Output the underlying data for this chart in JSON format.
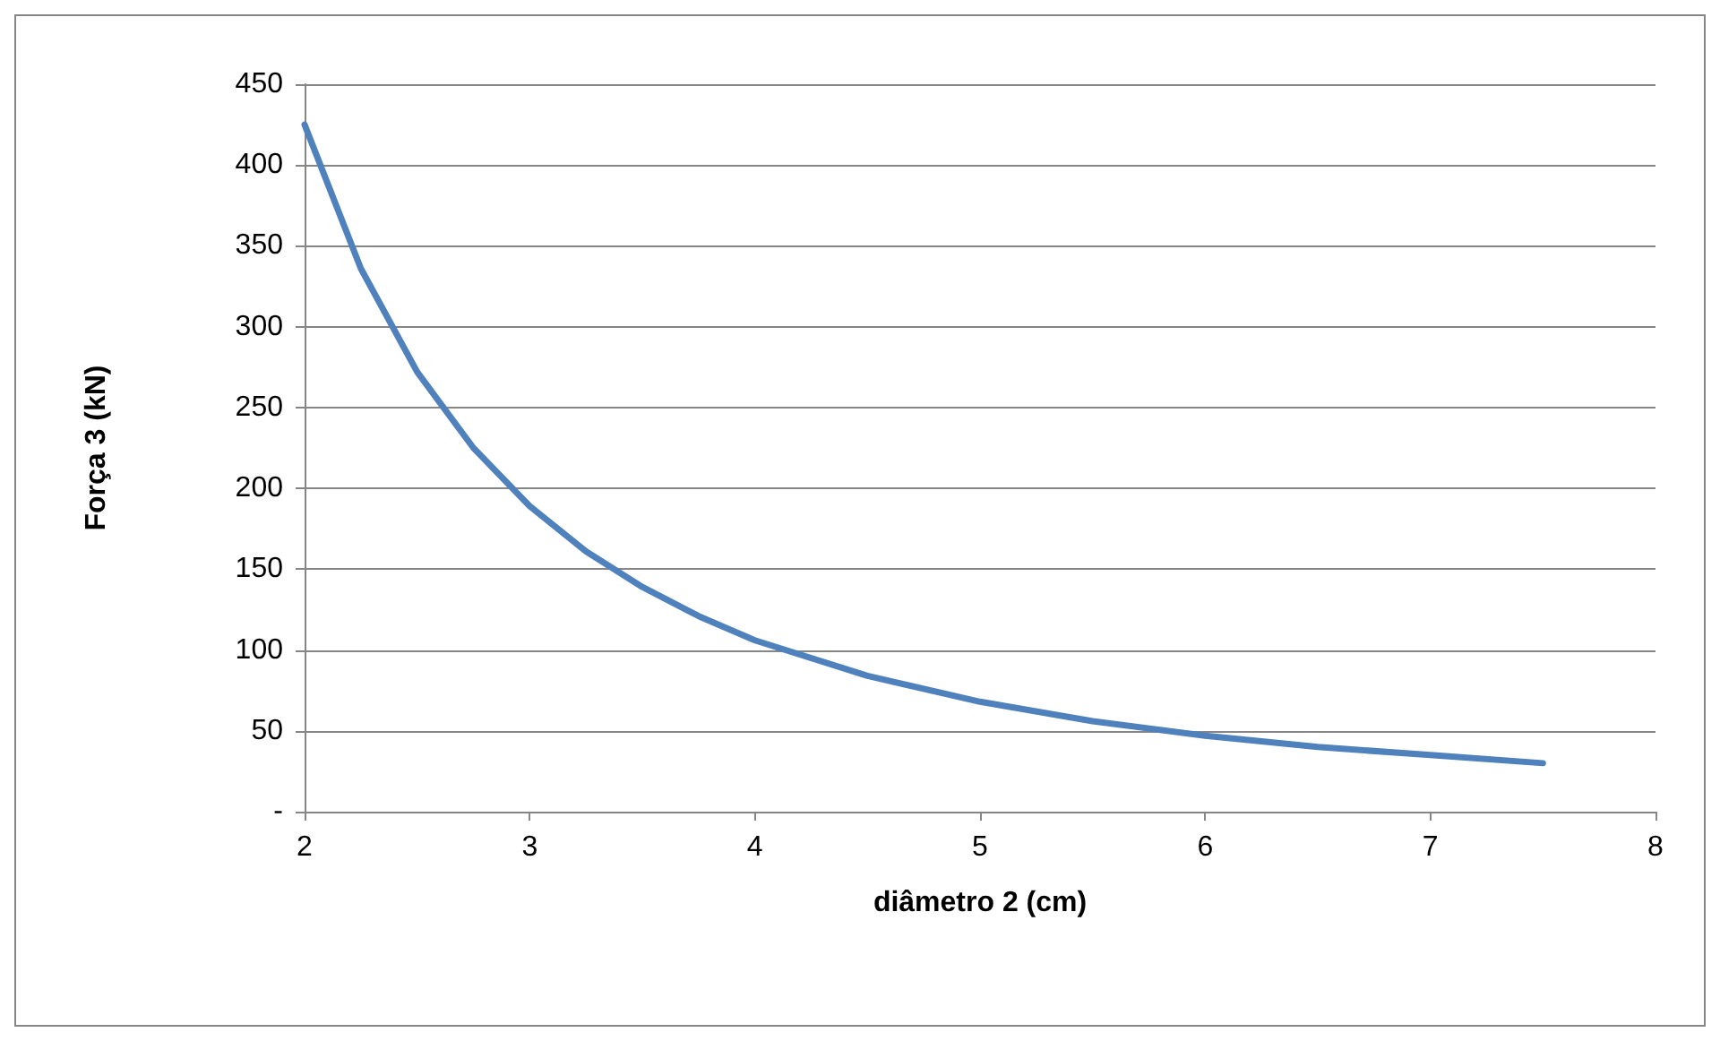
{
  "chart_data": {
    "type": "line",
    "xlabel": "diâmetro 2 (cm)",
    "ylabel": "Força 3 (kN)",
    "x": [
      2,
      2.25,
      2.5,
      2.75,
      3,
      3.25,
      3.5,
      3.75,
      4,
      4.5,
      5,
      5.5,
      6,
      6.5,
      7,
      7.5
    ],
    "series": [
      {
        "color": "#4f81bd",
        "values": [
          425,
          336,
          272,
          225,
          189,
          161,
          139,
          121,
          106,
          84,
          68,
          56,
          47,
          40,
          35,
          30
        ]
      }
    ],
    "xlim": [
      2,
      8
    ],
    "xticks": [
      2,
      3,
      4,
      5,
      6,
      7,
      8
    ],
    "ylim": [
      0,
      450
    ],
    "yticks": [
      {
        "value": 0,
        "label": "-"
      },
      50,
      100,
      150,
      200,
      250,
      300,
      350,
      400,
      450
    ],
    "grid": "y",
    "marker": "none",
    "line_style": "solid"
  }
}
